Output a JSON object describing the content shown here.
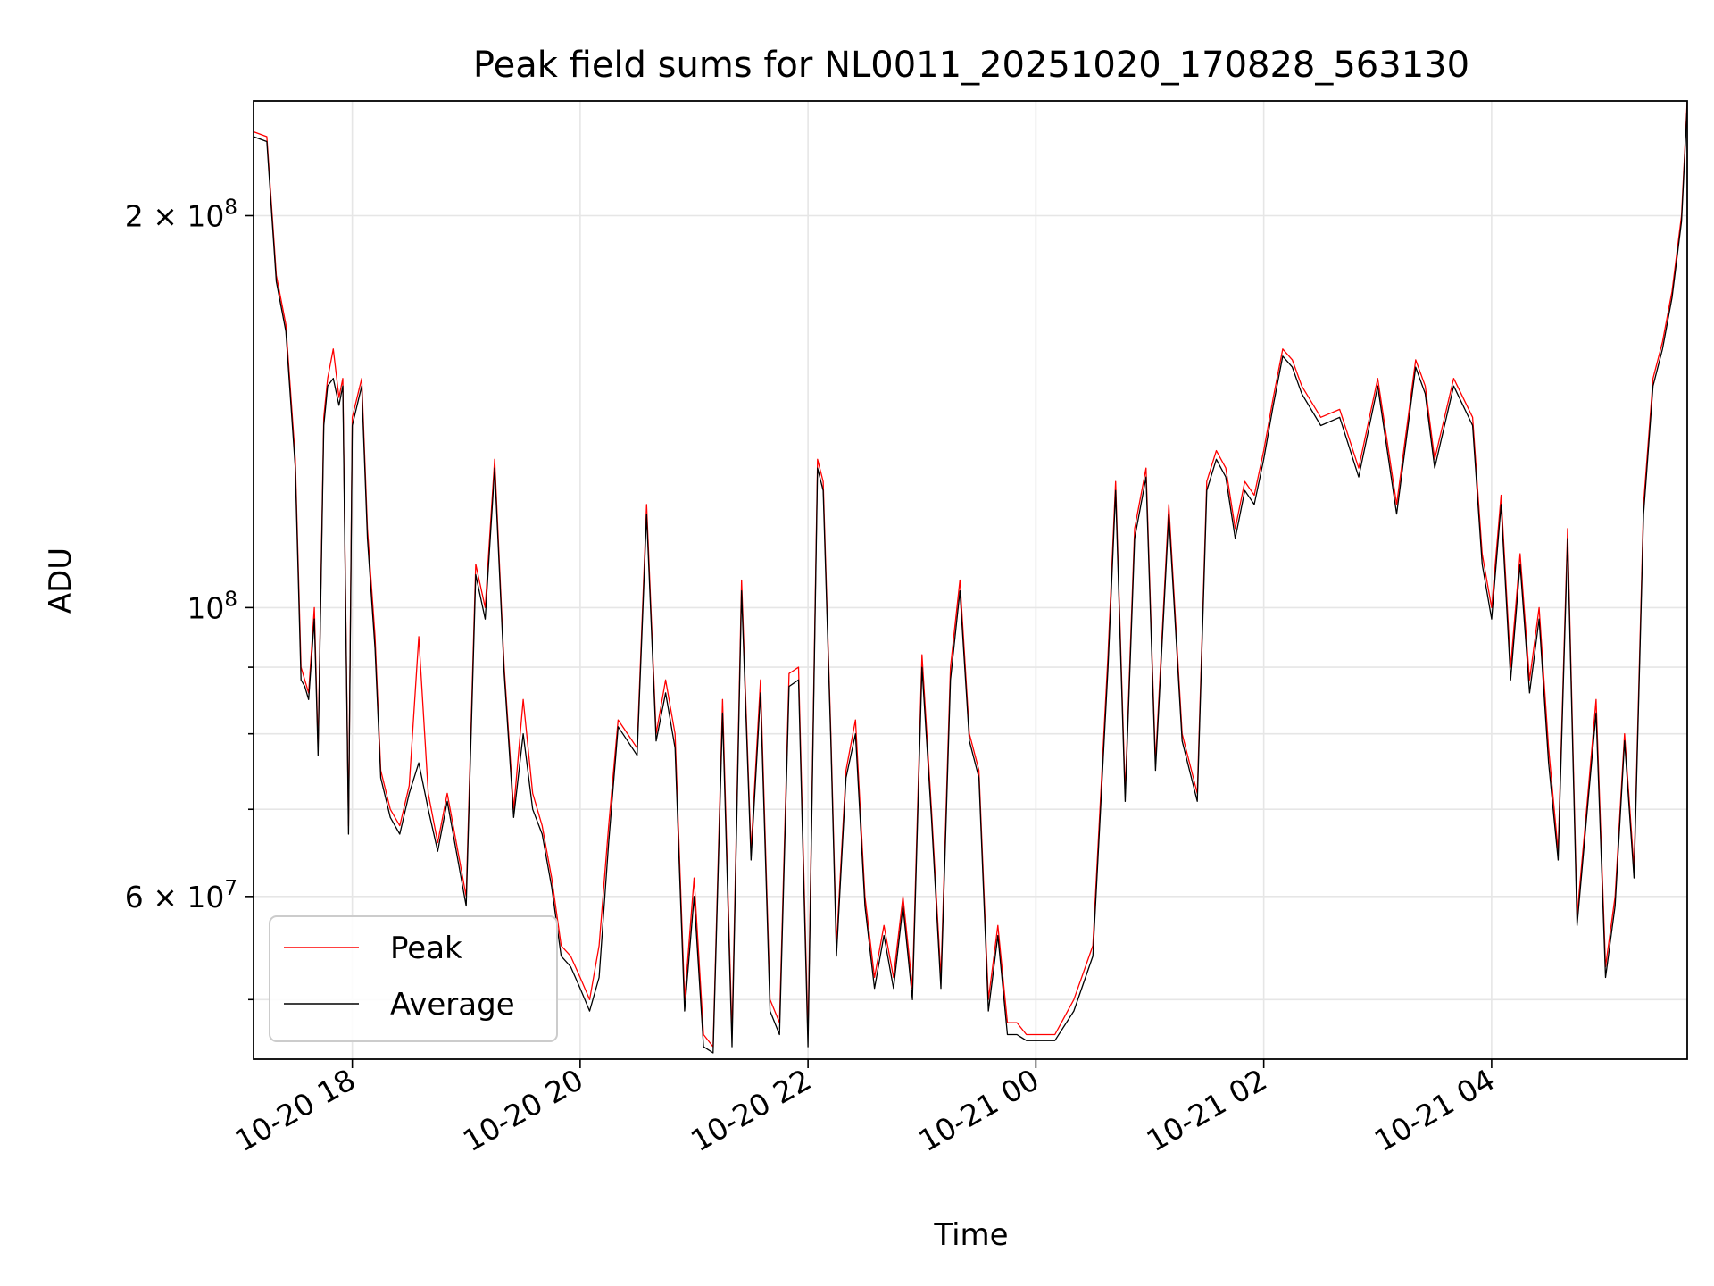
{
  "chart_data": {
    "type": "line",
    "title": "Peak field sums for NL0011_20251020_170828_563130",
    "xlabel": "Time",
    "ylabel": "ADU",
    "yscale": "log",
    "grid": true,
    "legend_position": "lower-left",
    "xlim": [
      "2025-10-20 17:08",
      "2025-10-21 05:43"
    ],
    "ylim": [
      45000000,
      245000000
    ],
    "x_ticks": [
      {
        "value": "2025-10-20 18:00",
        "label": "10-20 18"
      },
      {
        "value": "2025-10-20 20:00",
        "label": "10-20 20"
      },
      {
        "value": "2025-10-20 22:00",
        "label": "10-20 22"
      },
      {
        "value": "2025-10-21 00:00",
        "label": "10-21 00"
      },
      {
        "value": "2025-10-21 02:00",
        "label": "10-21 02"
      },
      {
        "value": "2025-10-21 04:00",
        "label": "10-21 04"
      }
    ],
    "y_major_ticks": [
      {
        "value": 60000000,
        "mantissa": "6",
        "exponent": "7"
      },
      {
        "value": 100000000,
        "mantissa": "",
        "exponent": "8"
      },
      {
        "value": 200000000,
        "mantissa": "2",
        "exponent": "8"
      }
    ],
    "y_minor_ticks": [
      50000000,
      70000000,
      80000000,
      90000000
    ],
    "x": [
      "2025-10-20 17:08",
      "2025-10-20 17:15",
      "2025-10-20 17:20",
      "2025-10-20 17:25",
      "2025-10-20 17:30",
      "2025-10-20 17:33",
      "2025-10-20 17:35",
      "2025-10-20 17:37",
      "2025-10-20 17:40",
      "2025-10-20 17:42",
      "2025-10-20 17:45",
      "2025-10-20 17:47",
      "2025-10-20 17:50",
      "2025-10-20 17:53",
      "2025-10-20 17:55",
      "2025-10-20 17:58",
      "2025-10-20 18:00",
      "2025-10-20 18:05",
      "2025-10-20 18:08",
      "2025-10-20 18:12",
      "2025-10-20 18:15",
      "2025-10-20 18:20",
      "2025-10-20 18:25",
      "2025-10-20 18:30",
      "2025-10-20 18:35",
      "2025-10-20 18:40",
      "2025-10-20 18:45",
      "2025-10-20 18:50",
      "2025-10-20 19:00",
      "2025-10-20 19:05",
      "2025-10-20 19:10",
      "2025-10-20 19:15",
      "2025-10-20 19:20",
      "2025-10-20 19:25",
      "2025-10-20 19:30",
      "2025-10-20 19:35",
      "2025-10-20 19:40",
      "2025-10-20 19:45",
      "2025-10-20 19:50",
      "2025-10-20 19:55",
      "2025-10-20 20:00",
      "2025-10-20 20:05",
      "2025-10-20 20:10",
      "2025-10-20 20:15",
      "2025-10-20 20:20",
      "2025-10-20 20:25",
      "2025-10-20 20:30",
      "2025-10-20 20:35",
      "2025-10-20 20:40",
      "2025-10-20 20:45",
      "2025-10-20 20:50",
      "2025-10-20 20:55",
      "2025-10-20 21:00",
      "2025-10-20 21:05",
      "2025-10-20 21:10",
      "2025-10-20 21:15",
      "2025-10-20 21:20",
      "2025-10-20 21:25",
      "2025-10-20 21:30",
      "2025-10-20 21:35",
      "2025-10-20 21:40",
      "2025-10-20 21:45",
      "2025-10-20 21:50",
      "2025-10-20 21:55",
      "2025-10-20 22:00",
      "2025-10-20 22:05",
      "2025-10-20 22:08",
      "2025-10-20 22:12",
      "2025-10-20 22:15",
      "2025-10-20 22:20",
      "2025-10-20 22:25",
      "2025-10-20 22:30",
      "2025-10-20 22:35",
      "2025-10-20 22:40",
      "2025-10-20 22:45",
      "2025-10-20 22:50",
      "2025-10-20 22:55",
      "2025-10-20 23:00",
      "2025-10-20 23:05",
      "2025-10-20 23:10",
      "2025-10-20 23:15",
      "2025-10-20 23:20",
      "2025-10-20 23:25",
      "2025-10-20 23:30",
      "2025-10-20 23:35",
      "2025-10-20 23:40",
      "2025-10-20 23:45",
      "2025-10-20 23:50",
      "2025-10-20 23:55",
      "2025-10-21 00:00",
      "2025-10-21 00:10",
      "2025-10-21 00:20",
      "2025-10-21 00:30",
      "2025-10-21 00:38",
      "2025-10-21 00:42",
      "2025-10-21 00:47",
      "2025-10-21 00:52",
      "2025-10-21 00:58",
      "2025-10-21 01:03",
      "2025-10-21 01:10",
      "2025-10-21 01:17",
      "2025-10-21 01:25",
      "2025-10-21 01:30",
      "2025-10-21 01:35",
      "2025-10-21 01:40",
      "2025-10-21 01:45",
      "2025-10-21 01:50",
      "2025-10-21 01:55",
      "2025-10-21 02:00",
      "2025-10-21 02:05",
      "2025-10-21 02:10",
      "2025-10-21 02:15",
      "2025-10-21 02:20",
      "2025-10-21 02:30",
      "2025-10-21 02:40",
      "2025-10-21 02:50",
      "2025-10-21 03:00",
      "2025-10-21 03:10",
      "2025-10-21 03:20",
      "2025-10-21 03:25",
      "2025-10-21 03:30",
      "2025-10-21 03:40",
      "2025-10-21 03:50",
      "2025-10-21 03:55",
      "2025-10-21 04:00",
      "2025-10-21 04:05",
      "2025-10-21 04:10",
      "2025-10-21 04:15",
      "2025-10-21 04:20",
      "2025-10-21 04:25",
      "2025-10-21 04:30",
      "2025-10-21 04:35",
      "2025-10-21 04:40",
      "2025-10-21 04:45",
      "2025-10-21 04:50",
      "2025-10-21 04:55",
      "2025-10-21 05:00",
      "2025-10-21 05:05",
      "2025-10-21 05:10",
      "2025-10-21 05:15",
      "2025-10-21 05:20",
      "2025-10-21 05:25",
      "2025-10-21 05:30",
      "2025-10-21 05:35",
      "2025-10-21 05:40",
      "2025-10-21 05:43"
    ],
    "series": [
      {
        "name": "Peak",
        "color": "#ff0000",
        "values": [
          232000000,
          230000000,
          180000000,
          165000000,
          130000000,
          90000000,
          88000000,
          86000000,
          100000000,
          78000000,
          140000000,
          150000000,
          158000000,
          145000000,
          150000000,
          68000000,
          140000000,
          150000000,
          115000000,
          95000000,
          75000000,
          70000000,
          68000000,
          73000000,
          95000000,
          72000000,
          66000000,
          72000000,
          60000000,
          108000000,
          100000000,
          130000000,
          90000000,
          70000000,
          85000000,
          72000000,
          68000000,
          62000000,
          55000000,
          54000000,
          52000000,
          50000000,
          55000000,
          68000000,
          82000000,
          80000000,
          78000000,
          120000000,
          80000000,
          88000000,
          80000000,
          50000000,
          62000000,
          47000000,
          46000000,
          85000000,
          47000000,
          105000000,
          65000000,
          88000000,
          50000000,
          48000000,
          89000000,
          90000000,
          47000000,
          130000000,
          125000000,
          80000000,
          55000000,
          75000000,
          82000000,
          60000000,
          52000000,
          57000000,
          52000000,
          60000000,
          51000000,
          92000000,
          70000000,
          52000000,
          90000000,
          105000000,
          80000000,
          75000000,
          50000000,
          57000000,
          48000000,
          48000000,
          47000000,
          47000000,
          47000000,
          50000000,
          55000000,
          92000000,
          125000000,
          72000000,
          115000000,
          128000000,
          76000000,
          120000000,
          80000000,
          72000000,
          125000000,
          132000000,
          128000000,
          115000000,
          125000000,
          122000000,
          132000000,
          145000000,
          158000000,
          155000000,
          148000000,
          140000000,
          142000000,
          128000000,
          150000000,
          120000000,
          155000000,
          148000000,
          130000000,
          150000000,
          140000000,
          110000000,
          100000000,
          122000000,
          90000000,
          110000000,
          88000000,
          100000000,
          78000000,
          65000000,
          115000000,
          58000000,
          70000000,
          85000000,
          53000000,
          60000000,
          80000000,
          63000000,
          120000000,
          150000000,
          160000000,
          175000000,
          200000000,
          245000000
        ]
      },
      {
        "name": "Average",
        "color": "#000000",
        "values": [
          230000000,
          228000000,
          178000000,
          163000000,
          128000000,
          88000000,
          87000000,
          85000000,
          98000000,
          77000000,
          138000000,
          148000000,
          150000000,
          143000000,
          148000000,
          67000000,
          138000000,
          148000000,
          113000000,
          93000000,
          74000000,
          69000000,
          67000000,
          72000000,
          76000000,
          70000000,
          65000000,
          71000000,
          59000000,
          106000000,
          98000000,
          128000000,
          89000000,
          69000000,
          80000000,
          70000000,
          67000000,
          61000000,
          54000000,
          53000000,
          51000000,
          49000000,
          52000000,
          66000000,
          81000000,
          79000000,
          77000000,
          118000000,
          79000000,
          86000000,
          78000000,
          49000000,
          60000000,
          46000000,
          45500000,
          83000000,
          46000000,
          103000000,
          64000000,
          86000000,
          49000000,
          47000000,
          87000000,
          88000000,
          46000000,
          128000000,
          123000000,
          79000000,
          54000000,
          74000000,
          80000000,
          59000000,
          51000000,
          56000000,
          51000000,
          59000000,
          50000000,
          90000000,
          69000000,
          51000000,
          88000000,
          103000000,
          79000000,
          74000000,
          49000000,
          56000000,
          47000000,
          47000000,
          46500000,
          46500000,
          46500000,
          49000000,
          54000000,
          90000000,
          123000000,
          71000000,
          113000000,
          126000000,
          75000000,
          118000000,
          79000000,
          71000000,
          123000000,
          130000000,
          126000000,
          113000000,
          123000000,
          120000000,
          130000000,
          143000000,
          156000000,
          153000000,
          146000000,
          138000000,
          140000000,
          126000000,
          148000000,
          118000000,
          153000000,
          146000000,
          128000000,
          148000000,
          138000000,
          108000000,
          98000000,
          120000000,
          88000000,
          108000000,
          86000000,
          98000000,
          76000000,
          64000000,
          113000000,
          57000000,
          69000000,
          83000000,
          52000000,
          59000000,
          79000000,
          62000000,
          118000000,
          148000000,
          158000000,
          173000000,
          198000000,
          243000000
        ]
      }
    ]
  }
}
